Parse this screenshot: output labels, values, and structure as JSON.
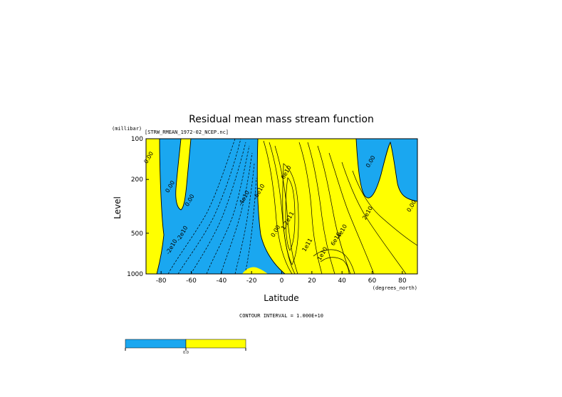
{
  "chart_data": {
    "type": "contour",
    "title": "Residual mean mass stream function",
    "subtitle": "[STRW_RMEAN_1972-02_NCEP.nc]",
    "ylabel": "Level",
    "yunit": "(millibar)",
    "xlabel": "Latitude",
    "xunit": "(degrees_north)",
    "xlim": [
      -90,
      90
    ],
    "ylim": [
      1000,
      100
    ],
    "yscale": "log",
    "xticks": [
      -80,
      -60,
      -40,
      -20,
      0,
      20,
      40,
      60,
      80
    ],
    "yticks": [
      100,
      200,
      500,
      1000
    ],
    "contour_interval_text": "CONTOUR INTERVAL = 1.000E+10",
    "colors": {
      "negative": "#1aa7f0",
      "positive": "#ffff00"
    },
    "colorbar_labels": [
      "0.0"
    ],
    "contour_labels": [
      {
        "text": "0.00",
        "lat": -89,
        "p": 140
      },
      {
        "text": "0.00",
        "lat": -73,
        "p": 230
      },
      {
        "text": "0.00",
        "lat": -60,
        "p": 290
      },
      {
        "text": "-2e10",
        "lat": -65,
        "p": 510
      },
      {
        "text": "-2e10",
        "lat": -72,
        "p": 640
      },
      {
        "text": "-4e10",
        "lat": -24,
        "p": 280
      },
      {
        "text": "-6e10",
        "lat": -14,
        "p": 250
      },
      {
        "text": "1.2e11",
        "lat": 5,
        "p": 410
      },
      {
        "text": "6e10",
        "lat": 4,
        "p": 180
      },
      {
        "text": "0.00",
        "lat": -3,
        "p": 490
      },
      {
        "text": "1e11",
        "lat": 18,
        "p": 620
      },
      {
        "text": "1e10",
        "lat": 28,
        "p": 720
      },
      {
        "text": "4e10",
        "lat": 41,
        "p": 490
      },
      {
        "text": "6e10",
        "lat": 37,
        "p": 560
      },
      {
        "text": "2e10",
        "lat": 58,
        "p": 360
      },
      {
        "text": "0.00",
        "lat": 60,
        "p": 150
      },
      {
        "text": "0.00",
        "lat": 88,
        "p": 320
      }
    ]
  }
}
